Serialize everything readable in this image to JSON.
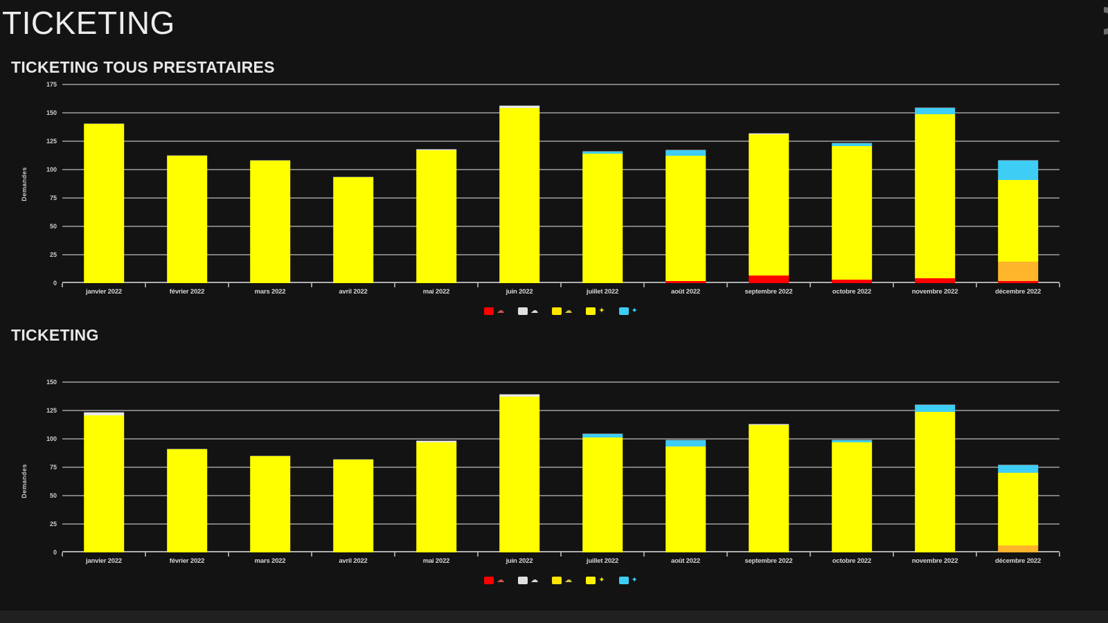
{
  "page": {
    "title": "TICKETING",
    "background": "#131313"
  },
  "header": {
    "status_icon": "loading-arc-icon"
  },
  "panels": [
    {
      "title": "TICKETING TOUS PRESTATAIRES"
    },
    {
      "title": "TICKETING"
    }
  ],
  "legend": {
    "entries": [
      {
        "icon": "cloud-red-icon",
        "swatch": "#fe0000",
        "glyph": "☁",
        "glyph_color": "#c9554f"
      },
      {
        "icon": "cloud-white-icon",
        "swatch": "#e0e0e0",
        "glyph": "☁",
        "glyph_color": "#d9d9d9"
      },
      {
        "icon": "cloud-yellow-icon",
        "swatch": "#ffe400",
        "glyph": "☁",
        "glyph_color": "#cfc04a"
      },
      {
        "icon": "sun-yellow-icon",
        "swatch": "#fff200",
        "glyph": "✦",
        "glyph_color": "#efe300"
      },
      {
        "icon": "star-cyan-icon",
        "swatch": "#3ecdf5",
        "glyph": "✦",
        "glyph_color": "#3ecdf5"
      }
    ]
  },
  "colors": {
    "grid": "#7e7e7e",
    "axis": "#b0b0b0",
    "text": "#e6e6e6",
    "bar_yellow": "#ffff00",
    "bar_red": "#fe0000",
    "bar_orange": "#ffb52b",
    "bar_white": "#e8e8e8",
    "bar_cyan": "#3ecdf5"
  },
  "chart_data": [
    {
      "type": "bar",
      "stacked": true,
      "title": "TICKETING TOUS PRESTATAIRES",
      "xlabel": "",
      "ylabel": "Demandes",
      "ylim": [
        0,
        175
      ],
      "yticks": [
        0,
        25,
        50,
        75,
        100,
        125,
        150,
        175
      ],
      "grid": true,
      "legend_position": "bottom-center",
      "categories": [
        "janvier 2022",
        "février 2022",
        "mars 2022",
        "avril 2022",
        "mai 2022",
        "juin 2022",
        "juillet 2022",
        "août 2022",
        "septembre 2022",
        "octobre 2022",
        "novembre 2022",
        "décembre 2022"
      ],
      "series": [
        {
          "name": "rouge",
          "color": "#fe0000",
          "values": [
            0,
            0,
            0,
            0,
            0,
            0,
            0,
            2,
            7,
            3,
            4,
            2
          ]
        },
        {
          "name": "orange",
          "color": "#ffb52b",
          "values": [
            0,
            0,
            0,
            0,
            0,
            0,
            0,
            0,
            0,
            0,
            0,
            17
          ]
        },
        {
          "name": "jaune",
          "color": "#ffff00",
          "values": [
            140,
            112,
            108,
            93,
            117,
            154,
            114,
            110,
            124,
            118,
            145,
            72
          ]
        },
        {
          "name": "blanc",
          "color": "#e8e8e8",
          "values": [
            0,
            0,
            0,
            0,
            1,
            2,
            0,
            0,
            1,
            0,
            0,
            0
          ]
        },
        {
          "name": "cyan",
          "color": "#3ecdf5",
          "values": [
            0,
            0,
            0,
            0,
            0,
            0,
            2,
            5,
            0,
            2,
            5,
            17
          ]
        }
      ]
    },
    {
      "type": "bar",
      "stacked": true,
      "title": "TICKETING",
      "xlabel": "",
      "ylabel": "Demandes",
      "ylim": [
        0,
        150
      ],
      "yticks": [
        0,
        25,
        50,
        75,
        100,
        125,
        150
      ],
      "grid": true,
      "legend_position": "bottom-center",
      "categories": [
        "janvier 2022",
        "février 2022",
        "mars 2022",
        "avril 2022",
        "mai 2022",
        "juin 2022",
        "juillet 2022",
        "août 2022",
        "septembre 2022",
        "octobre 2022",
        "novembre 2022",
        "décembre 2022"
      ],
      "series": [
        {
          "name": "rouge",
          "color": "#fe0000",
          "values": [
            0,
            0,
            0,
            0,
            0,
            0,
            0,
            0,
            0,
            0,
            0,
            0
          ]
        },
        {
          "name": "orange",
          "color": "#ffb52b",
          "values": [
            0,
            0,
            0,
            0,
            0,
            0,
            0,
            0,
            0,
            0,
            0,
            6
          ]
        },
        {
          "name": "jaune",
          "color": "#ffff00",
          "values": [
            121,
            91,
            85,
            82,
            97,
            137,
            101,
            93,
            112,
            97,
            124,
            64
          ]
        },
        {
          "name": "blanc",
          "color": "#e8e8e8",
          "values": [
            2,
            0,
            0,
            0,
            1,
            2,
            0,
            0,
            1,
            0,
            0,
            0
          ]
        },
        {
          "name": "cyan",
          "color": "#3ecdf5",
          "values": [
            0,
            0,
            0,
            0,
            0,
            0,
            3,
            6,
            0,
            2,
            6,
            7
          ]
        }
      ]
    }
  ]
}
